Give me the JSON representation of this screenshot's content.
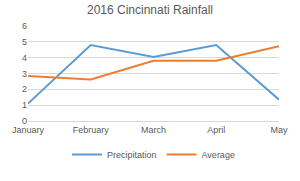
{
  "chart_data": {
    "type": "line",
    "title": "2016 Cincinnati Rainfall",
    "categories": [
      "January",
      "February",
      "March",
      "April",
      "May"
    ],
    "series": [
      {
        "name": "Precipitation",
        "color": "#5b9bd5",
        "values": [
          1.1,
          4.8,
          4.05,
          4.8,
          1.35
        ]
      },
      {
        "name": "Average",
        "color": "#ed7d31",
        "values": [
          2.85,
          2.62,
          3.8,
          3.8,
          4.72
        ]
      }
    ],
    "ylim": [
      0,
      6
    ],
    "yticks": [
      0,
      1,
      2,
      3,
      4,
      5,
      6
    ],
    "grid": true,
    "legend": "bottom"
  }
}
